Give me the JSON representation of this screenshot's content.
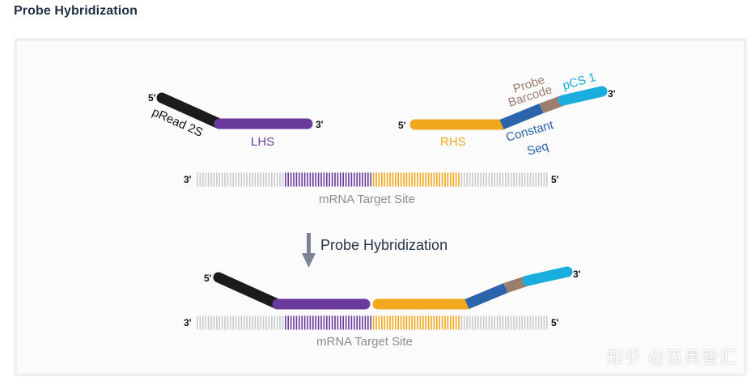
{
  "header": {
    "title": "Probe Hybridization"
  },
  "diagram": {
    "colors": {
      "pread": "#1b1b1b",
      "lhs": "#6a3a9c",
      "rhs": "#f2a81d",
      "constant_seq": "#2c63ad",
      "probe_barcode": "#9b7e6e",
      "pcs1": "#1aaee0",
      "mrna_gray": "#c9cbcd",
      "label_gray": "#8c8c8c",
      "arrow": "#7b8394"
    },
    "top": {
      "left_probe": {
        "five_prime": "5'",
        "three_prime": "3'",
        "pread_label": "pRead 2S",
        "lhs_label": "LHS"
      },
      "right_probe": {
        "five_prime": "5'",
        "three_prime": "3'",
        "rhs_label": "RHS",
        "probe_barcode_label_line1": "Probe",
        "probe_barcode_label_line2": "Barcode",
        "pcs1_label": "pCS 1",
        "constant_seq_label_line1": "Constant",
        "constant_seq_label_line2": "Seq"
      },
      "mrna": {
        "three_prime": "3'",
        "five_prime": "5'",
        "label": "mRNA Target Site"
      }
    },
    "step": {
      "label": "Probe Hybridization",
      "icon": "down-arrow-icon"
    },
    "bottom": {
      "five_prime": "5'",
      "three_prime": "3'",
      "mrna": {
        "three_prime": "3'",
        "five_prime": "5'",
        "label": "mRNA Target Site"
      }
    }
  },
  "watermark": {
    "text": "知乎 @百奥智汇"
  }
}
